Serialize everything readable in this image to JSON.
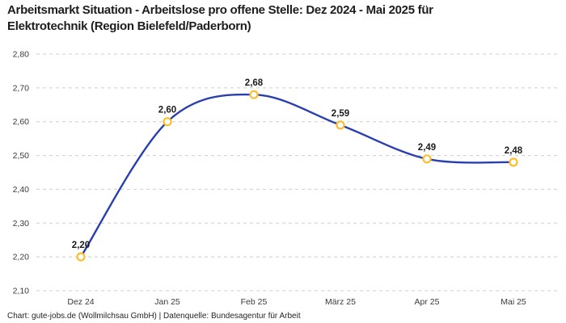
{
  "header": {
    "title_lines": [
      "Arbeitsmarkt Situation - Arbeitslose pro offene Stelle: Dez 2024 - Mai 2025 für",
      "Elektrotechnik (Region Bielefeld/Paderborn)"
    ]
  },
  "footer": {
    "credit": "Chart: gute-jobs.de (Wollmilchsau GmbH) | Datenquelle: Bundesagentur für Arbeit"
  },
  "chart_data": {
    "type": "line",
    "title": "Arbeitsmarkt Situation - Arbeitslose pro offene Stelle: Dez 2024 - Mai 2025 für Elektrotechnik (Region Bielefeld/Paderborn)",
    "categories": [
      "Dez 24",
      "Jan 25",
      "Feb 25",
      "März 25",
      "Apr 25",
      "Mai 25"
    ],
    "values": [
      2.2,
      2.6,
      2.68,
      2.59,
      2.49,
      2.48
    ],
    "value_labels": [
      "2,20",
      "2,60",
      "2,68",
      "2,59",
      "2,49",
      "2,48"
    ],
    "yticks": [
      {
        "value": 2.8,
        "label": "2,80"
      },
      {
        "value": 2.7,
        "label": "2,70"
      },
      {
        "value": 2.6,
        "label": "2,60"
      },
      {
        "value": 2.5,
        "label": "2,50"
      },
      {
        "value": 2.4,
        "label": "2,40"
      },
      {
        "value": 2.3,
        "label": "2,30"
      },
      {
        "value": 2.2,
        "label": "2,20"
      },
      {
        "value": 2.1,
        "label": "2,10"
      }
    ],
    "ylim": [
      2.1,
      2.8
    ],
    "xlabel": "",
    "ylabel": "",
    "grid": "horizontal-dashed",
    "legend": "none",
    "line_style": "smooth",
    "marker_style": "open-circle",
    "colors": {
      "line": "#2a3fae",
      "marker": "#fcbe2d",
      "grid": "#cdcdcd",
      "label": "#1b1b1b"
    }
  }
}
